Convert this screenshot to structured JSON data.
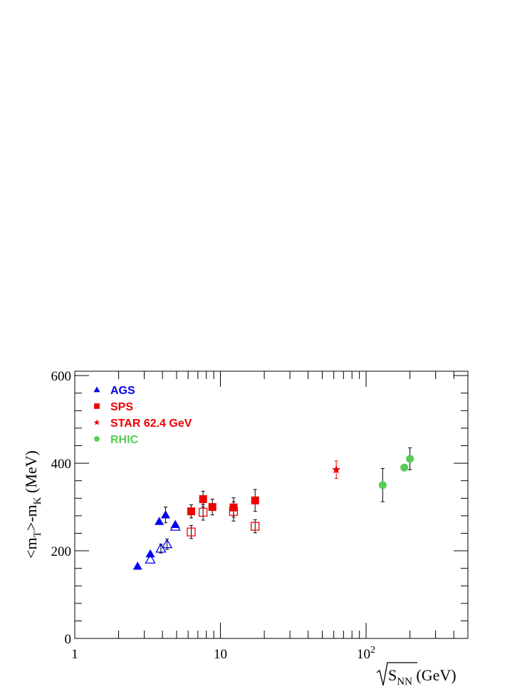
{
  "chart_data": {
    "type": "scatter",
    "x_scale": "log",
    "xlim": [
      1,
      500
    ],
    "ylim": [
      0,
      610
    ],
    "x_ticks": [
      {
        "value": 1,
        "label": "1"
      },
      {
        "value": 10,
        "label": "10"
      },
      {
        "value": 100,
        "label": "10",
        "sup": "2"
      }
    ],
    "y_ticks": [
      0,
      200,
      400,
      600
    ],
    "xlabel": {
      "main": "S",
      "sub": "NN",
      "unit": " (GeV)"
    },
    "ylabel": {
      "p1": "<m",
      "s1": "T",
      "p2": ">-m",
      "s2": "K",
      "p3": " (MeV)"
    },
    "legend_placement": "top-left",
    "series": [
      {
        "name": "AGS",
        "color": "#0000ee",
        "marker": "triangle",
        "filled": true,
        "points": [
          {
            "x": 2.7,
            "y": 165
          },
          {
            "x": 3.3,
            "y": 193
          },
          {
            "x": 3.8,
            "y": 267
          },
          {
            "x": 4.2,
            "y": 282,
            "err": 18
          },
          {
            "x": 4.9,
            "y": 260
          }
        ]
      },
      {
        "name": "",
        "color": "#0000ee",
        "marker": "triangle",
        "filled": false,
        "points": [
          {
            "x": 3.3,
            "y": 180
          },
          {
            "x": 3.9,
            "y": 205,
            "err": 10
          },
          {
            "x": 4.3,
            "y": 215,
            "err": 12
          },
          {
            "x": 4.9,
            "y": 255
          }
        ]
      },
      {
        "name": "SPS",
        "color": "#ee0000",
        "marker": "square",
        "filled": true,
        "points": [
          {
            "x": 6.3,
            "y": 290,
            "err": 15
          },
          {
            "x": 7.6,
            "y": 318,
            "err": 18
          },
          {
            "x": 8.8,
            "y": 300,
            "err": 18
          },
          {
            "x": 12.3,
            "y": 299,
            "err": 22
          },
          {
            "x": 17.3,
            "y": 315,
            "err": 25
          }
        ]
      },
      {
        "name": "",
        "color": "#ee0000",
        "marker": "square",
        "filled": false,
        "points": [
          {
            "x": 6.3,
            "y": 243,
            "err": 15
          },
          {
            "x": 7.6,
            "y": 288,
            "err": 18
          },
          {
            "x": 12.3,
            "y": 290,
            "err": 22
          },
          {
            "x": 17.3,
            "y": 256,
            "err": 15
          }
        ]
      },
      {
        "name": "STAR 62.4 GeV",
        "color": "#ee0000",
        "marker": "star",
        "filled": true,
        "points": [
          {
            "x": 62.4,
            "y": 385,
            "err": 20
          }
        ]
      },
      {
        "name": "RHIC",
        "color": "#55cc55",
        "marker": "circle",
        "filled": true,
        "points": [
          {
            "x": 130,
            "y": 350,
            "err": 38
          },
          {
            "x": 183,
            "y": 390
          },
          {
            "x": 200,
            "y": 410,
            "err": 25
          }
        ]
      }
    ]
  }
}
